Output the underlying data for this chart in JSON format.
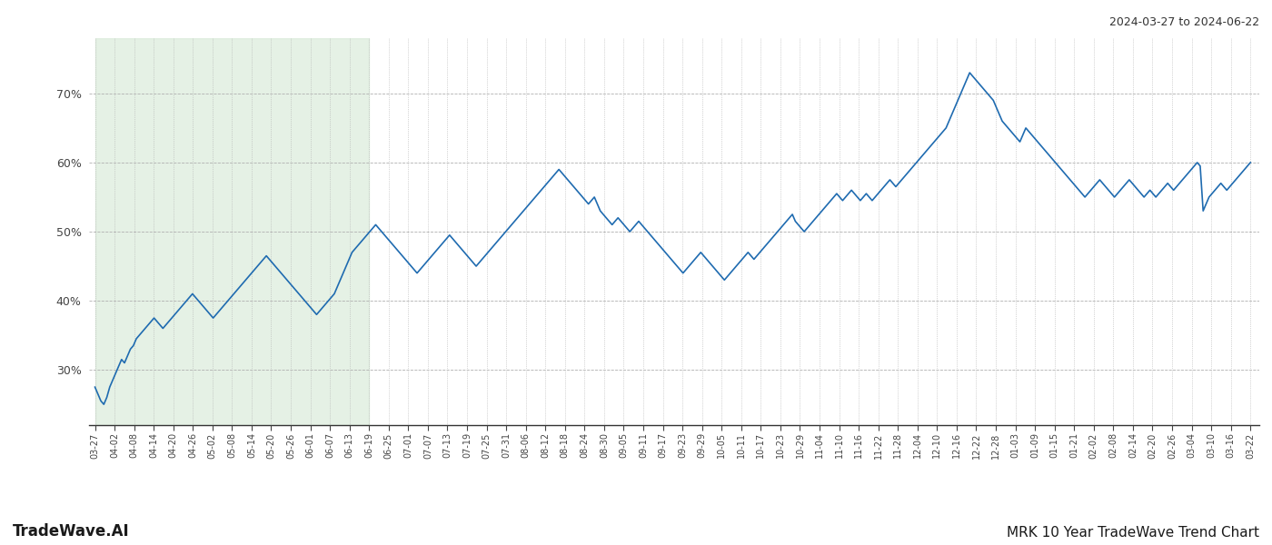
{
  "title_top_right": "2024-03-27 to 2024-06-22",
  "title_bottom_left": "TradeWave.AI",
  "title_bottom_right": "MRK 10 Year TradeWave Trend Chart",
  "line_color": "#1f6bb0",
  "line_width": 1.2,
  "bg_color": "#ffffff",
  "grid_color": "#b0b0b0",
  "shade_color": "#d4e8d4",
  "shade_alpha": 0.6,
  "ylim": [
    22,
    78
  ],
  "yticks": [
    30,
    40,
    50,
    60,
    70
  ],
  "x_tick_labels": [
    "03-27",
    "04-02",
    "04-08",
    "04-14",
    "04-20",
    "04-26",
    "05-02",
    "05-08",
    "05-14",
    "05-20",
    "05-26",
    "06-01",
    "06-07",
    "06-13",
    "06-19",
    "06-25",
    "07-01",
    "07-07",
    "07-13",
    "07-19",
    "07-25",
    "07-31",
    "08-06",
    "08-12",
    "08-18",
    "08-24",
    "08-30",
    "09-05",
    "09-11",
    "09-17",
    "09-23",
    "09-29",
    "10-05",
    "10-11",
    "10-17",
    "10-23",
    "10-29",
    "11-04",
    "11-10",
    "11-16",
    "11-22",
    "11-28",
    "12-04",
    "12-10",
    "12-16",
    "12-22",
    "12-28",
    "01-03",
    "01-09",
    "01-15",
    "01-21",
    "02-02",
    "02-08",
    "02-14",
    "02-20",
    "02-26",
    "03-04",
    "03-10",
    "03-16",
    "03-22"
  ],
  "shade_start_label": "03-27",
  "shade_end_label": "06-19",
  "y_values": [
    27.5,
    26.5,
    25.5,
    25.0,
    26.0,
    27.5,
    28.5,
    29.5,
    30.5,
    31.5,
    31.0,
    32.0,
    33.0,
    33.5,
    34.5,
    35.0,
    35.5,
    36.0,
    36.5,
    37.0,
    37.5,
    37.0,
    36.5,
    36.0,
    36.5,
    37.0,
    37.5,
    38.0,
    38.5,
    39.0,
    39.5,
    40.0,
    40.5,
    41.0,
    40.5,
    40.0,
    39.5,
    39.0,
    38.5,
    38.0,
    37.5,
    38.0,
    38.5,
    39.0,
    39.5,
    40.0,
    40.5,
    41.0,
    41.5,
    42.0,
    42.5,
    43.0,
    43.5,
    44.0,
    44.5,
    45.0,
    45.5,
    46.0,
    46.5,
    46.0,
    45.5,
    45.0,
    44.5,
    44.0,
    43.5,
    43.0,
    42.5,
    42.0,
    41.5,
    41.0,
    40.5,
    40.0,
    39.5,
    39.0,
    38.5,
    38.0,
    38.5,
    39.0,
    39.5,
    40.0,
    40.5,
    41.0,
    42.0,
    43.0,
    44.0,
    45.0,
    46.0,
    47.0,
    47.5,
    48.0,
    48.5,
    49.0,
    49.5,
    50.0,
    50.5,
    51.0,
    50.5,
    50.0,
    49.5,
    49.0,
    48.5,
    48.0,
    47.5,
    47.0,
    46.5,
    46.0,
    45.5,
    45.0,
    44.5,
    44.0,
    44.5,
    45.0,
    45.5,
    46.0,
    46.5,
    47.0,
    47.5,
    48.0,
    48.5,
    49.0,
    49.5,
    49.0,
    48.5,
    48.0,
    47.5,
    47.0,
    46.5,
    46.0,
    45.5,
    45.0,
    45.5,
    46.0,
    46.5,
    47.0,
    47.5,
    48.0,
    48.5,
    49.0,
    49.5,
    50.0,
    50.5,
    51.0,
    51.5,
    52.0,
    52.5,
    53.0,
    53.5,
    54.0,
    54.5,
    55.0,
    55.5,
    56.0,
    56.5,
    57.0,
    57.5,
    58.0,
    58.5,
    59.0,
    58.5,
    58.0,
    57.5,
    57.0,
    56.5,
    56.0,
    55.5,
    55.0,
    54.5,
    54.0,
    54.5,
    55.0,
    54.0,
    53.0,
    52.5,
    52.0,
    51.5,
    51.0,
    51.5,
    52.0,
    51.5,
    51.0,
    50.5,
    50.0,
    50.5,
    51.0,
    51.5,
    51.0,
    50.5,
    50.0,
    49.5,
    49.0,
    48.5,
    48.0,
    47.5,
    47.0,
    46.5,
    46.0,
    45.5,
    45.0,
    44.5,
    44.0,
    44.5,
    45.0,
    45.5,
    46.0,
    46.5,
    47.0,
    46.5,
    46.0,
    45.5,
    45.0,
    44.5,
    44.0,
    43.5,
    43.0,
    43.5,
    44.0,
    44.5,
    45.0,
    45.5,
    46.0,
    46.5,
    47.0,
    46.5,
    46.0,
    46.5,
    47.0,
    47.5,
    48.0,
    48.5,
    49.0,
    49.5,
    50.0,
    50.5,
    51.0,
    51.5,
    52.0,
    52.5,
    51.5,
    51.0,
    50.5,
    50.0,
    50.5,
    51.0,
    51.5,
    52.0,
    52.5,
    53.0,
    53.5,
    54.0,
    54.5,
    55.0,
    55.5,
    55.0,
    54.5,
    55.0,
    55.5,
    56.0,
    55.5,
    55.0,
    54.5,
    55.0,
    55.5,
    55.0,
    54.5,
    55.0,
    55.5,
    56.0,
    56.5,
    57.0,
    57.5,
    57.0,
    56.5,
    57.0,
    57.5,
    58.0,
    58.5,
    59.0,
    59.5,
    60.0,
    60.5,
    61.0,
    61.5,
    62.0,
    62.5,
    63.0,
    63.5,
    64.0,
    64.5,
    65.0,
    66.0,
    67.0,
    68.0,
    69.0,
    70.0,
    71.0,
    72.0,
    73.0,
    72.5,
    72.0,
    71.5,
    71.0,
    70.5,
    70.0,
    69.5,
    69.0,
    68.0,
    67.0,
    66.0,
    65.5,
    65.0,
    64.5,
    64.0,
    63.5,
    63.0,
    64.0,
    65.0,
    64.5,
    64.0,
    63.5,
    63.0,
    62.5,
    62.0,
    61.5,
    61.0,
    60.5,
    60.0,
    59.5,
    59.0,
    58.5,
    58.0,
    57.5,
    57.0,
    56.5,
    56.0,
    55.5,
    55.0,
    55.5,
    56.0,
    56.5,
    57.0,
    57.5,
    57.0,
    56.5,
    56.0,
    55.5,
    55.0,
    55.5,
    56.0,
    56.5,
    57.0,
    57.5,
    57.0,
    56.5,
    56.0,
    55.5,
    55.0,
    55.5,
    56.0,
    55.5,
    55.0,
    55.5,
    56.0,
    56.5,
    57.0,
    56.5,
    56.0,
    56.5,
    57.0,
    57.5,
    58.0,
    58.5,
    59.0,
    59.5,
    60.0,
    59.5,
    53.0,
    54.0,
    55.0,
    55.5,
    56.0,
    56.5,
    57.0,
    56.5,
    56.0,
    56.5,
    57.0,
    57.5,
    58.0,
    58.5,
    59.0,
    59.5,
    60.0
  ],
  "n_ticks": 60,
  "total_points": 390
}
